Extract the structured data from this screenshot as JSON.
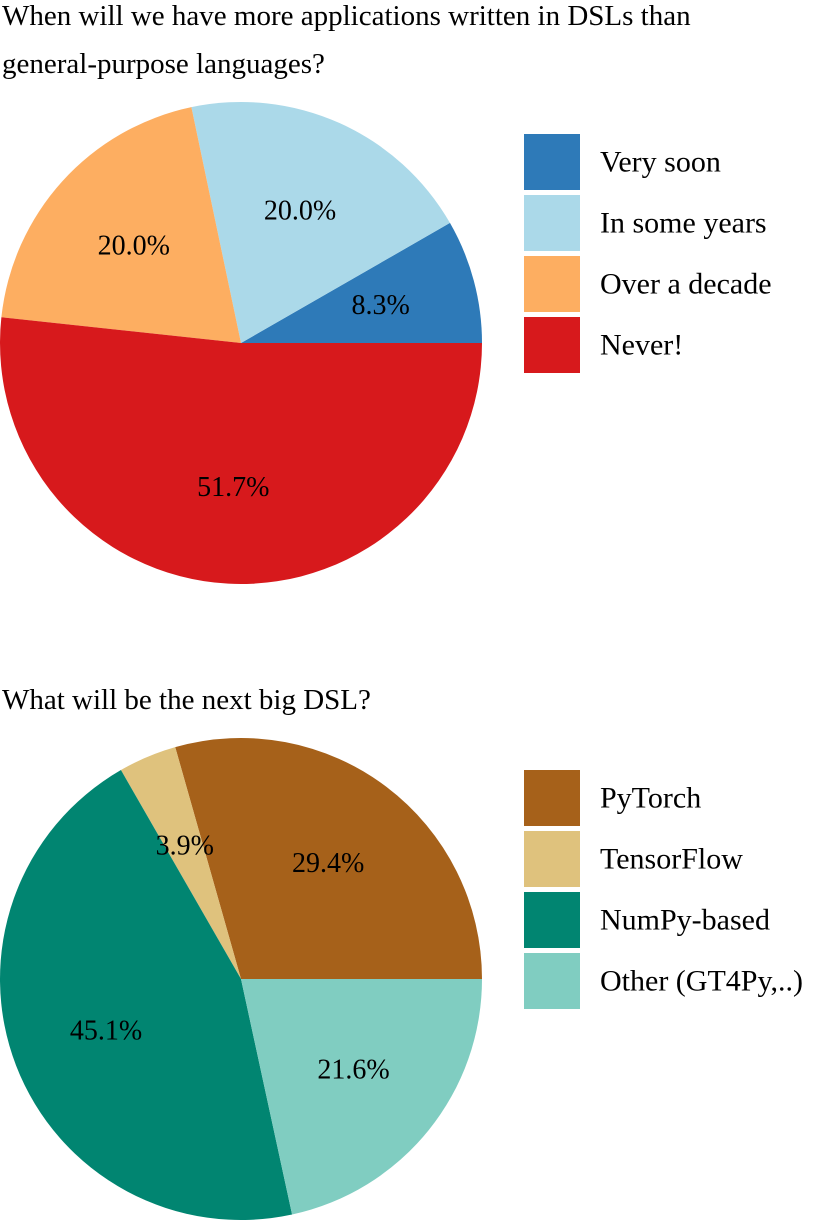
{
  "chart_data": [
    {
      "type": "pie",
      "title": "When will we have more applications written in DSLs than general-purpose languages?",
      "start_angle_deg": 0,
      "direction": "counterclockwise",
      "legend_position": "right",
      "slices": [
        {
          "label": "Very soon",
          "value": 8.3,
          "value_label": "8.3%",
          "color": "#2e7ab8"
        },
        {
          "label": "In some years",
          "value": 20.0,
          "value_label": "20.0%",
          "color": "#abd9e9"
        },
        {
          "label": "Over a decade",
          "value": 20.0,
          "value_label": "20.0%",
          "color": "#fdae61"
        },
        {
          "label": "Never!",
          "value": 51.7,
          "value_label": "51.7%",
          "color": "#d7191c"
        }
      ]
    },
    {
      "type": "pie",
      "title": "What will be the next big DSL?",
      "start_angle_deg": 0,
      "direction": "counterclockwise",
      "legend_position": "right",
      "slices": [
        {
          "label": "PyTorch",
          "value": 29.4,
          "value_label": "29.4%",
          "color": "#a6611a"
        },
        {
          "label": "TensorFlow",
          "value": 3.9,
          "value_label": "3.9%",
          "color": "#dfc27d"
        },
        {
          "label": "NumPy-based",
          "value": 45.1,
          "value_label": "45.1%",
          "color": "#018571"
        },
        {
          "label": "Other (GT4Py,..)",
          "value": 21.6,
          "value_label": "21.6%",
          "color": "#80cdc1"
        }
      ]
    }
  ]
}
